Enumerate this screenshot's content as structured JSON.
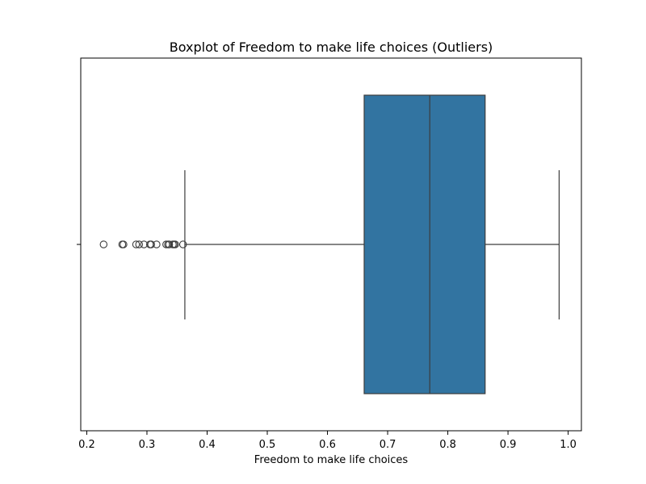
{
  "chart_data": {
    "type": "boxplot",
    "title": "Boxplot of Freedom to make life choices (Outliers)",
    "xlabel": "Freedom to make life choices",
    "ylabel": "",
    "xlim": [
      0.19,
      1.022
    ],
    "grid": false,
    "orientation": "horizontal",
    "x_ticks": [
      0.2,
      0.3,
      0.4,
      0.5,
      0.6,
      0.7,
      0.8,
      0.9,
      1.0
    ],
    "x_tick_labels": [
      "0.2",
      "0.3",
      "0.4",
      "0.5",
      "0.6",
      "0.7",
      "0.8",
      "0.9",
      "1.0"
    ],
    "box": {
      "whisker_low": 0.363,
      "q1": 0.661,
      "median": 0.77,
      "q3": 0.862,
      "whisker_high": 0.985
    },
    "outliers": [
      0.228,
      0.259,
      0.261,
      0.282,
      0.287,
      0.295,
      0.305,
      0.307,
      0.316,
      0.332,
      0.335,
      0.337,
      0.343,
      0.345,
      0.347,
      0.36
    ],
    "colors": {
      "box_fill": "#3274a1",
      "line": "#3d3d3d",
      "axis": "#000000",
      "outlier_edge": "#3d3d3d"
    }
  }
}
